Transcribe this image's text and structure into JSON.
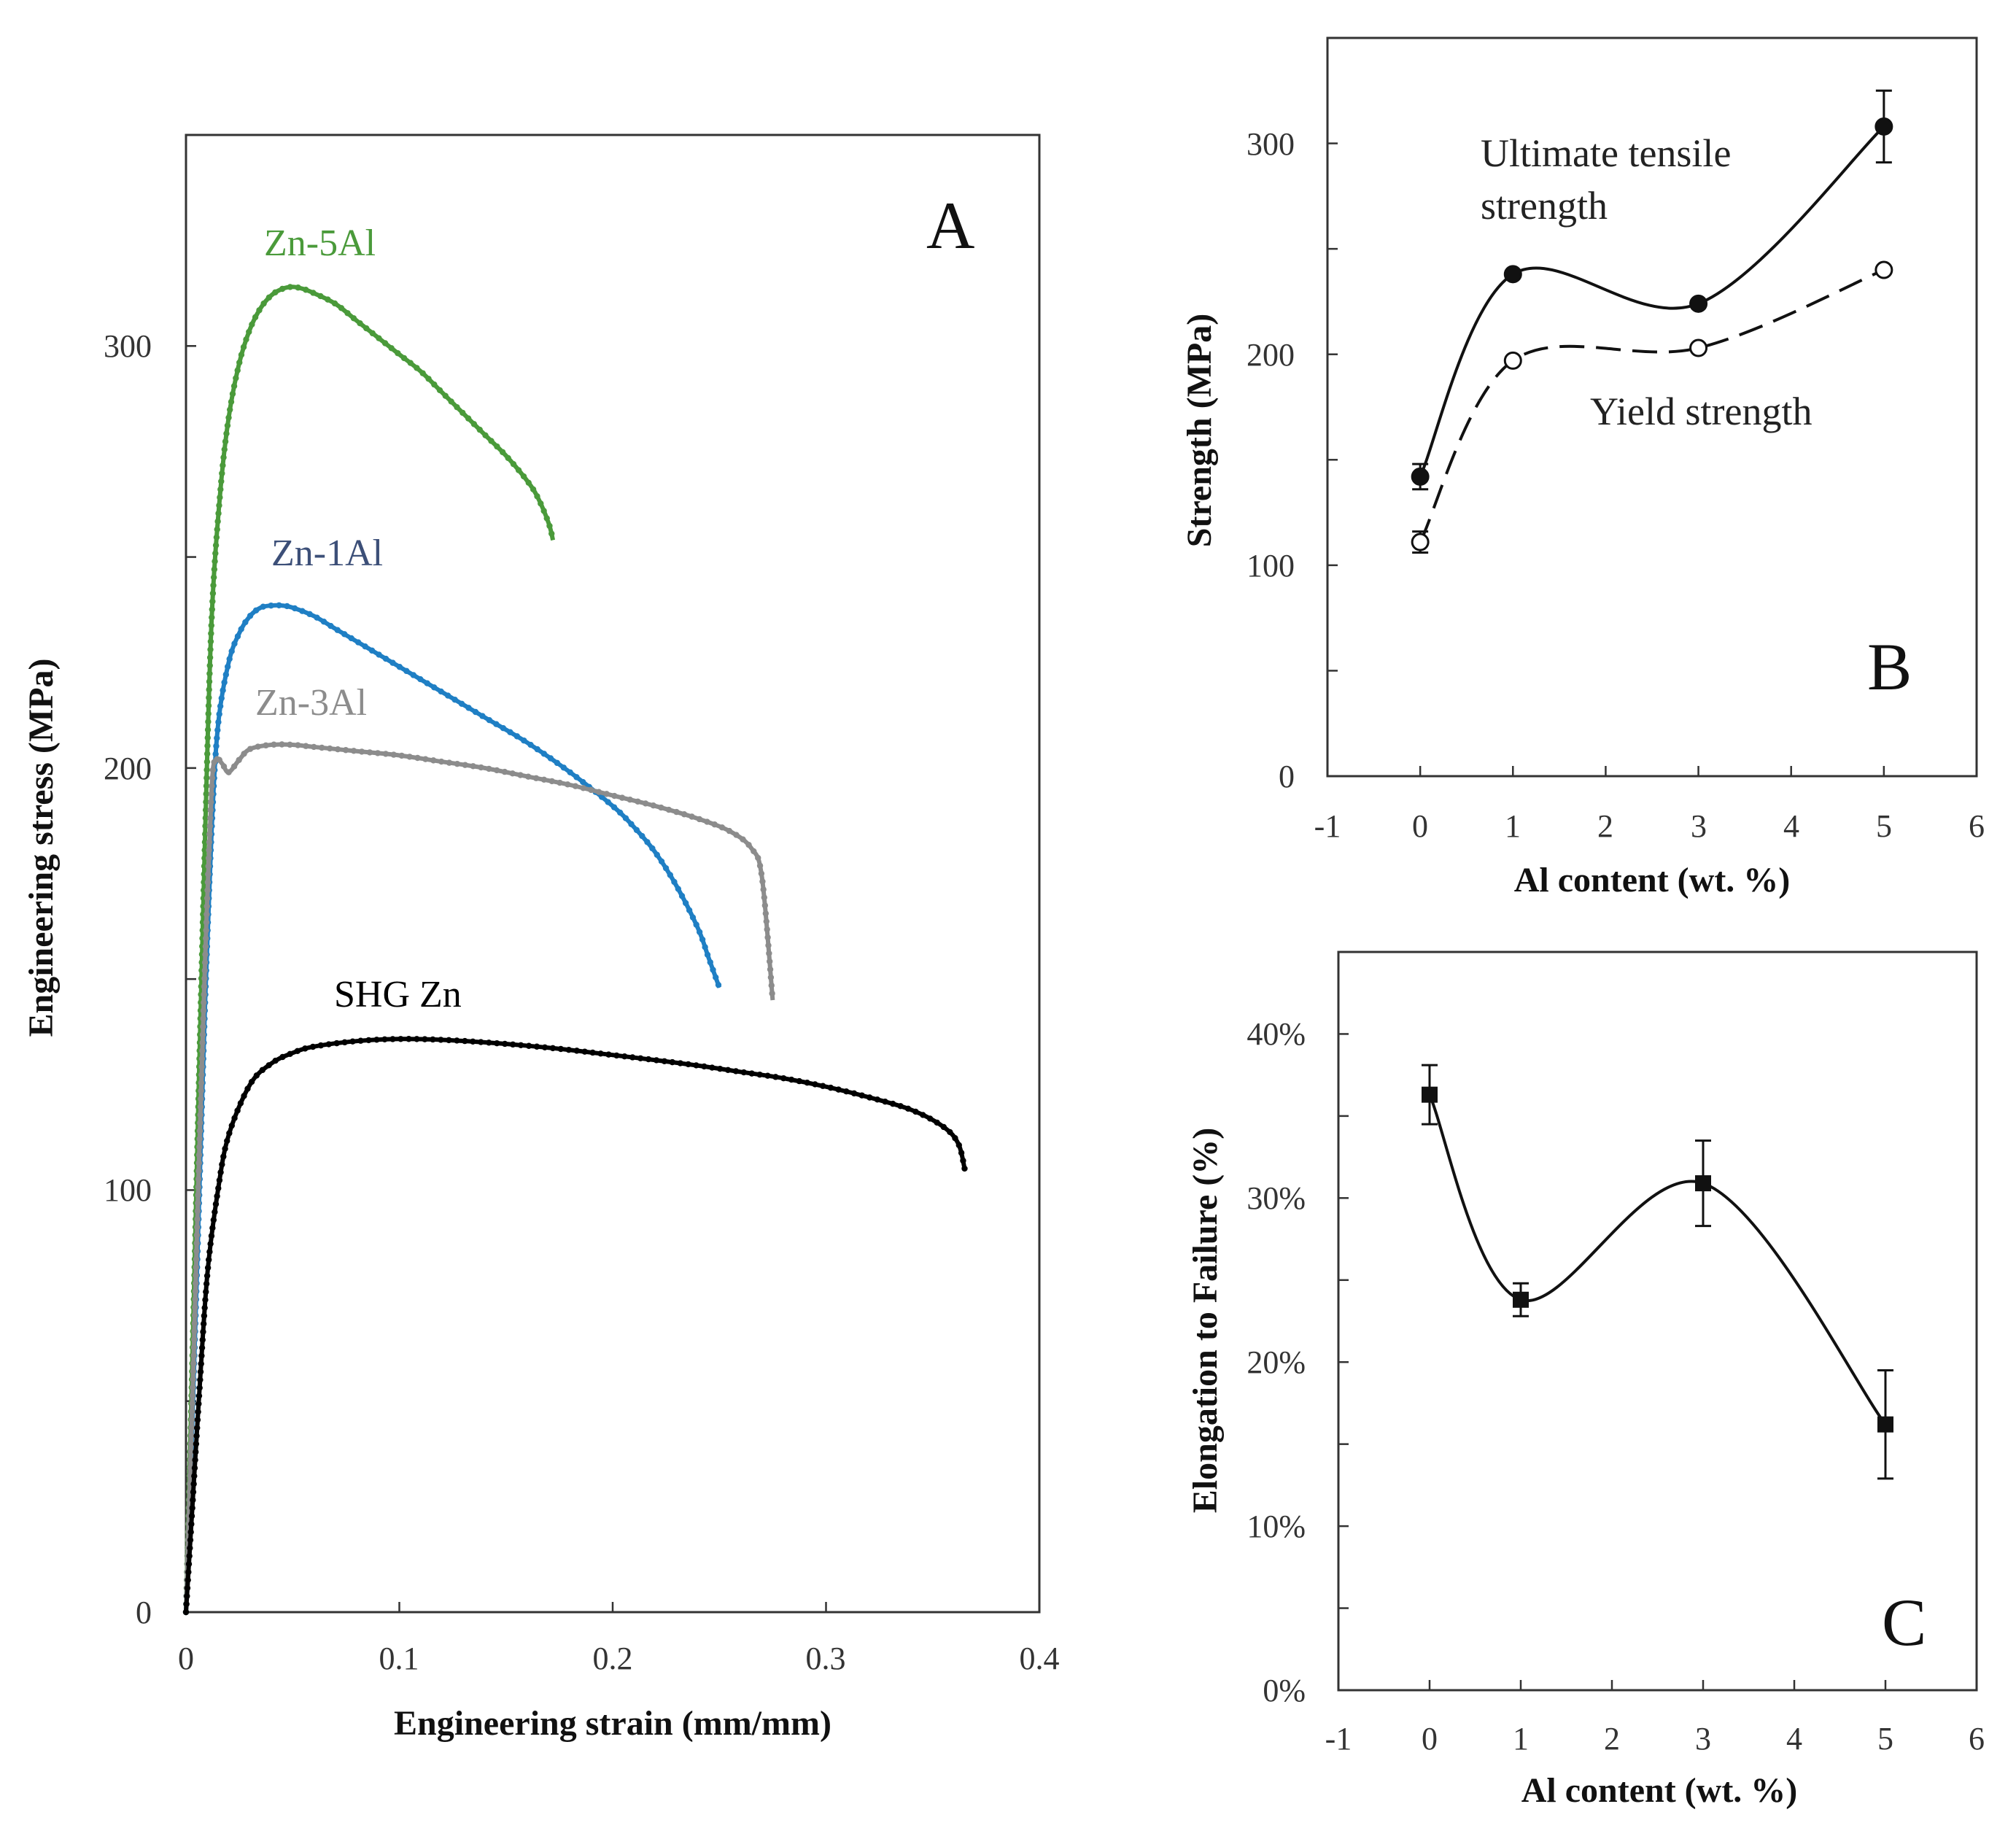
{
  "chart_data": [
    {
      "panel": "A",
      "type": "line",
      "xlabel": "Engineering strain (mm/mm)",
      "ylabel": "Engineering stress (MPa)",
      "xlim": [
        0,
        0.4
      ],
      "ylim": [
        0,
        350
      ],
      "xticks": [
        "0",
        "0.1",
        "0.2",
        "0.3",
        "0.4"
      ],
      "yticks": [
        "0",
        "100",
        "200",
        "300"
      ],
      "grid": false,
      "series": [
        {
          "name": "Zn-5Al",
          "color": "#4a9a3a",
          "points": [
            [
              0,
              0
            ],
            [
              0.003,
              60
            ],
            [
              0.006,
              125
            ],
            [
              0.009,
              185
            ],
            [
              0.012,
              235
            ],
            [
              0.016,
              265
            ],
            [
              0.02,
              283
            ],
            [
              0.025,
              296
            ],
            [
              0.03,
              304
            ],
            [
              0.035,
              309
            ],
            [
              0.04,
              312
            ],
            [
              0.045,
              313.5
            ],
            [
              0.05,
              314
            ],
            [
              0.055,
              313.5
            ],
            [
              0.06,
              312.5
            ],
            [
              0.07,
              310
            ],
            [
              0.08,
              306
            ],
            [
              0.09,
              302
            ],
            [
              0.1,
              298
            ],
            [
              0.11,
              294
            ],
            [
              0.12,
              289
            ],
            [
              0.13,
              284
            ],
            [
              0.14,
              279
            ],
            [
              0.15,
              274
            ],
            [
              0.16,
              268
            ],
            [
              0.165,
              264
            ],
            [
              0.17,
              258
            ],
            [
              0.172,
              254
            ]
          ]
        },
        {
          "name": "Zn-1Al",
          "color": "#1f7fc4",
          "points": [
            [
              0,
              0
            ],
            [
              0.003,
              45
            ],
            [
              0.006,
              95
            ],
            [
              0.009,
              145
            ],
            [
              0.012,
              185
            ],
            [
              0.015,
              210
            ],
            [
              0.02,
              225
            ],
            [
              0.025,
              232
            ],
            [
              0.03,
              236
            ],
            [
              0.035,
              238
            ],
            [
              0.04,
              238.5
            ],
            [
              0.045,
              238.5
            ],
            [
              0.05,
              238
            ],
            [
              0.06,
              236
            ],
            [
              0.07,
              233
            ],
            [
              0.08,
              230
            ],
            [
              0.09,
              227
            ],
            [
              0.1,
              224
            ],
            [
              0.12,
              218
            ],
            [
              0.14,
              212
            ],
            [
              0.16,
              206
            ],
            [
              0.18,
              199
            ],
            [
              0.2,
              191
            ],
            [
              0.21,
              186
            ],
            [
              0.22,
              180
            ],
            [
              0.23,
              172
            ],
            [
              0.24,
              162
            ],
            [
              0.245,
              155
            ],
            [
              0.25,
              148
            ]
          ]
        },
        {
          "name": "Zn-3Al",
          "color": "#8c8c8c",
          "points": [
            [
              0,
              0
            ],
            [
              0.003,
              50
            ],
            [
              0.006,
              105
            ],
            [
              0.009,
              155
            ],
            [
              0.012,
              195
            ],
            [
              0.014,
              202
            ],
            [
              0.017,
              201
            ],
            [
              0.02,
              199
            ],
            [
              0.025,
              202
            ],
            [
              0.03,
              204.5
            ],
            [
              0.04,
              205.5
            ],
            [
              0.05,
              205.5
            ],
            [
              0.06,
              205
            ],
            [
              0.08,
              204
            ],
            [
              0.1,
              203
            ],
            [
              0.12,
              201.5
            ],
            [
              0.14,
              200
            ],
            [
              0.16,
              198
            ],
            [
              0.18,
              196
            ],
            [
              0.2,
              193.5
            ],
            [
              0.22,
              191
            ],
            [
              0.24,
              188
            ],
            [
              0.255,
              185
            ],
            [
              0.265,
              181
            ],
            [
              0.27,
              174
            ],
            [
              0.275,
              145
            ]
          ]
        },
        {
          "name": "SHG Zn",
          "color": "#000000",
          "points": [
            [
              0,
              0
            ],
            [
              0.003,
              25
            ],
            [
              0.006,
              50
            ],
            [
              0.01,
              80
            ],
            [
              0.015,
              100
            ],
            [
              0.02,
              113
            ],
            [
              0.03,
              125
            ],
            [
              0.04,
              130
            ],
            [
              0.05,
              132.5
            ],
            [
              0.06,
              134
            ],
            [
              0.08,
              135.3
            ],
            [
              0.1,
              135.8
            ],
            [
              0.12,
              135.6
            ],
            [
              0.14,
              135
            ],
            [
              0.16,
              134.2
            ],
            [
              0.18,
              133.2
            ],
            [
              0.2,
              132
            ],
            [
              0.22,
              130.8
            ],
            [
              0.24,
              129.5
            ],
            [
              0.26,
              128
            ],
            [
              0.28,
              126.5
            ],
            [
              0.3,
              124.5
            ],
            [
              0.32,
              122
            ],
            [
              0.34,
              119
            ],
            [
              0.355,
              115
            ],
            [
              0.362,
              111
            ],
            [
              0.365,
              105
            ]
          ]
        }
      ],
      "panel_letter": "A"
    },
    {
      "panel": "B",
      "type": "scatter",
      "xlabel": "Al content (wt. %)",
      "ylabel": "Strength (MPa)",
      "xlim": [
        -1,
        6
      ],
      "ylim": [
        0,
        350
      ],
      "xticks": [
        "-1",
        "0",
        "1",
        "2",
        "3",
        "4",
        "5",
        "6"
      ],
      "yticks": [
        "0",
        "100",
        "200",
        "300"
      ],
      "grid": false,
      "series": [
        {
          "name": "Ultimate tensile strength",
          "marker": "filled-circle",
          "line": "solid",
          "x": [
            0,
            1,
            3,
            5
          ],
          "y": [
            142,
            238,
            224,
            308
          ],
          "error": [
            6,
            0,
            0,
            17
          ]
        },
        {
          "name": "Yield strength",
          "marker": "open-circle",
          "line": "dashed",
          "x": [
            0,
            1,
            3,
            5
          ],
          "y": [
            111,
            197,
            203,
            240
          ],
          "error": [
            5,
            0,
            0,
            0
          ]
        }
      ],
      "annotations": [
        {
          "text": "Ultimate tensile",
          "series": 0
        },
        {
          "text": "strength",
          "series": 0
        },
        {
          "text": "Yield strength",
          "series": 1
        }
      ],
      "panel_letter": "B"
    },
    {
      "panel": "C",
      "type": "scatter",
      "xlabel": "Al content (wt. %)",
      "ylabel": "Elongation to Failure (%)",
      "xlim": [
        -1,
        6
      ],
      "ylim": [
        0,
        45
      ],
      "xticks": [
        "-1",
        "0",
        "1",
        "2",
        "3",
        "4",
        "5",
        "6"
      ],
      "yticks": [
        "0%",
        "10%",
        "20%",
        "30%",
        "40%"
      ],
      "grid": false,
      "series": [
        {
          "marker": "filled-square",
          "line": "solid",
          "x": [
            0,
            1,
            3,
            5
          ],
          "y": [
            36.3,
            23.8,
            30.9,
            16.2
          ],
          "error": [
            1.8,
            1.0,
            2.6,
            3.3
          ]
        }
      ],
      "panel_letter": "C"
    }
  ]
}
